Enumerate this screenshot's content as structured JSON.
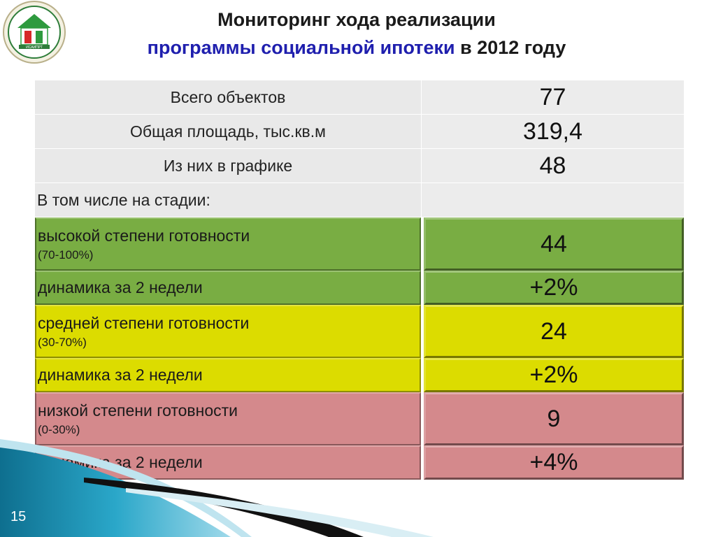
{
  "title": {
    "line1": "Мониторинг хода реализации",
    "line2_accent": "программы социальной ипотеки",
    "line2_rest": " в 2012 году"
  },
  "logo": {
    "icon": "organization-emblem-icon",
    "text": "ИСАИПРТ"
  },
  "rows": [
    {
      "label": "Всего объектов",
      "value": "77"
    },
    {
      "label": "Общая площадь, тыс.кв.м",
      "value": "319,4"
    },
    {
      "label": "Из них в графике",
      "value": "48"
    },
    {
      "label": "В том числе на стадии:",
      "value": ""
    },
    {
      "label": "высокой степени готовности",
      "sub": "(70-100%)",
      "value": "44"
    },
    {
      "label": "динамика за 2 недели",
      "value": "+2%"
    },
    {
      "label": "средней степени готовности",
      "sub": "(30-70%)",
      "value": "24"
    },
    {
      "label": "динамика за 2 недели",
      "value": "+2%"
    },
    {
      "label": "низкой степени готовности",
      "sub": "(0-30%)",
      "value": "9"
    },
    {
      "label": "динамика за 2 недели",
      "value": "+4%"
    }
  ],
  "colors": {
    "green": "#79ad43",
    "yellow": "#dcdc00",
    "pink": "#d4898c",
    "accent": "#1f1fae"
  },
  "slide_number": "15"
}
